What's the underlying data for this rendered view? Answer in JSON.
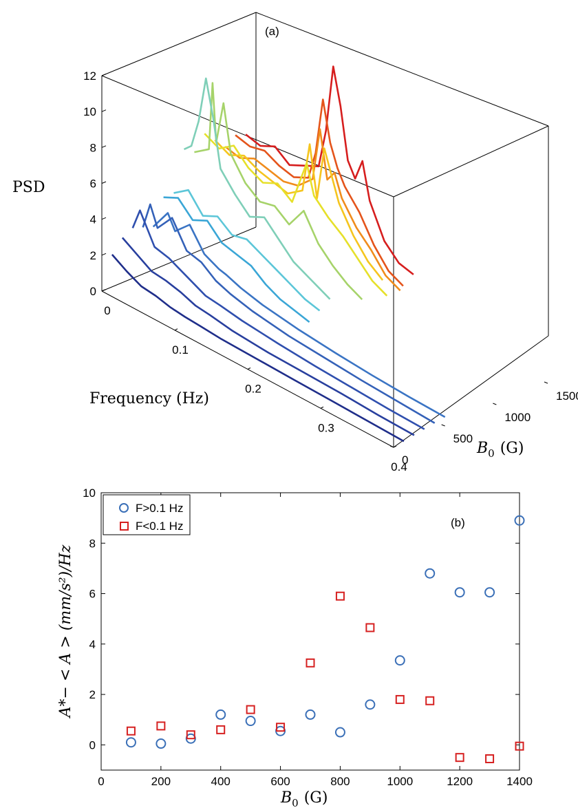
{
  "chart_data": [
    {
      "panel": "(a)",
      "type": "line",
      "projection": "3d-waterfall",
      "zlabel": "PSD",
      "xlabel": "Frequency (Hz)",
      "ylabel_sym": "B",
      "ylabel_sub": "0",
      "ylabel_unit": "(G)",
      "zlim": [
        0,
        12
      ],
      "xlim": [
        0,
        0.4
      ],
      "ylim": [
        0,
        1500
      ],
      "z_ticks": [
        0,
        2,
        4,
        6,
        8,
        10,
        12
      ],
      "x_ticks": [
        0,
        0.1,
        0.2,
        0.3,
        0.4
      ],
      "y_ticks": [
        0,
        500,
        1000,
        1500
      ],
      "colormap": "jet, blue (low B0) to red (high B0)",
      "series": [
        {
          "b0": 100,
          "color": "#1f2e8a",
          "points": [
            [
              0.0,
              1.8
            ],
            [
              0.02,
              1.3
            ],
            [
              0.04,
              0.9
            ],
            [
              0.06,
              0.8
            ],
            [
              0.08,
              0.6
            ],
            [
              0.1,
              0.5
            ],
            [
              0.12,
              0.45
            ],
            [
              0.15,
              0.35
            ],
            [
              0.2,
              0.3
            ],
            [
              0.25,
              0.25
            ],
            [
              0.3,
              0.2
            ],
            [
              0.35,
              0.15
            ],
            [
              0.4,
              0.1
            ]
          ]
        },
        {
          "b0": 200,
          "color": "#283f9e",
          "points": [
            [
              0.0,
              2.5
            ],
            [
              0.02,
              2.0
            ],
            [
              0.04,
              1.5
            ],
            [
              0.06,
              1.4
            ],
            [
              0.08,
              1.2
            ],
            [
              0.1,
              0.9
            ],
            [
              0.12,
              0.8
            ],
            [
              0.15,
              0.6
            ],
            [
              0.2,
              0.45
            ],
            [
              0.25,
              0.4
            ],
            [
              0.3,
              0.35
            ],
            [
              0.35,
              0.25
            ],
            [
              0.4,
              0.2
            ]
          ]
        },
        {
          "b0": 300,
          "color": "#2f4fae",
          "points": [
            [
              0.0,
              2.8
            ],
            [
              0.01,
              4.0
            ],
            [
              0.03,
              2.4
            ],
            [
              0.05,
              2.2
            ],
            [
              0.07,
              1.8
            ],
            [
              0.1,
              1.2
            ],
            [
              0.12,
              1.1
            ],
            [
              0.15,
              0.9
            ],
            [
              0.2,
              0.7
            ],
            [
              0.25,
              0.55
            ],
            [
              0.3,
              0.45
            ],
            [
              0.35,
              0.35
            ],
            [
              0.4,
              0.3
            ]
          ]
        },
        {
          "b0": 400,
          "color": "#3461b8",
          "points": [
            [
              0.0,
              2.6
            ],
            [
              0.01,
              4.1
            ],
            [
              0.02,
              3.0
            ],
            [
              0.04,
              4.0
            ],
            [
              0.06,
              2.6
            ],
            [
              0.08,
              2.4
            ],
            [
              0.1,
              1.8
            ],
            [
              0.12,
              1.5
            ],
            [
              0.15,
              1.2
            ],
            [
              0.2,
              0.9
            ],
            [
              0.25,
              0.75
            ],
            [
              0.3,
              0.6
            ],
            [
              0.35,
              0.5
            ],
            [
              0.4,
              0.4
            ]
          ]
        },
        {
          "b0": 500,
          "color": "#3a74c4",
          "points": [
            [
              0.0,
              2.4
            ],
            [
              0.02,
              3.6
            ],
            [
              0.03,
              2.8
            ],
            [
              0.05,
              3.6
            ],
            [
              0.07,
              2.4
            ],
            [
              0.09,
              2.0
            ],
            [
              0.1,
              1.9
            ],
            [
              0.12,
              1.6
            ],
            [
              0.15,
              1.3
            ],
            [
              0.2,
              1.0
            ],
            [
              0.25,
              0.8
            ],
            [
              0.3,
              0.65
            ],
            [
              0.35,
              0.55
            ],
            [
              0.4,
              0.5
            ]
          ]
        },
        {
          "b0": 600,
          "color": "#3aa6d6",
          "points": [
            [
              0.0,
              3.8
            ],
            [
              0.02,
              4.2
            ],
            [
              0.04,
              3.4
            ],
            [
              0.06,
              3.8
            ],
            [
              0.08,
              3.0
            ],
            [
              0.1,
              2.8
            ],
            [
              0.12,
              2.6
            ],
            [
              0.14,
              2.0
            ],
            [
              0.16,
              1.6
            ],
            [
              0.18,
              1.4
            ],
            [
              0.2,
              1.2
            ]
          ]
        },
        {
          "b0": 700,
          "color": "#5cc6d8",
          "points": [
            [
              0.0,
              3.8
            ],
            [
              0.02,
              4.4
            ],
            [
              0.04,
              3.4
            ],
            [
              0.06,
              3.8
            ],
            [
              0.08,
              3.2
            ],
            [
              0.1,
              3.4
            ],
            [
              0.12,
              3.0
            ],
            [
              0.14,
              2.6
            ],
            [
              0.16,
              2.2
            ],
            [
              0.18,
              1.8
            ],
            [
              0.2,
              1.6
            ]
          ]
        },
        {
          "b0": 800,
          "color": "#7fcfb8",
          "points": [
            [
              0.0,
              6.0
            ],
            [
              0.01,
              6.4
            ],
            [
              0.02,
              8.0
            ],
            [
              0.03,
              10.6
            ],
            [
              0.04,
              8.6
            ],
            [
              0.05,
              6.0
            ],
            [
              0.07,
              5.0
            ],
            [
              0.09,
              4.2
            ],
            [
              0.11,
              4.6
            ],
            [
              0.13,
              3.8
            ],
            [
              0.15,
              3.0
            ],
            [
              0.17,
              2.6
            ],
            [
              0.2,
              2.0
            ]
          ]
        },
        {
          "b0": 900,
          "color": "#a6d36a",
          "points": [
            [
              0.0,
              5.6
            ],
            [
              0.02,
              6.2
            ],
            [
              0.025,
              10.0
            ],
            [
              0.03,
              6.8
            ],
            [
              0.04,
              9.2
            ],
            [
              0.05,
              6.6
            ],
            [
              0.07,
              5.4
            ],
            [
              0.09,
              4.8
            ],
            [
              0.11,
              5.0
            ],
            [
              0.13,
              4.4
            ],
            [
              0.15,
              5.6
            ],
            [
              0.17,
              4.2
            ],
            [
              0.19,
              3.4
            ],
            [
              0.21,
              2.8
            ],
            [
              0.23,
              2.4
            ]
          ]
        },
        {
          "b0": 1000,
          "color": "#e6e02a",
          "points": [
            [
              0.0,
              6.4
            ],
            [
              0.02,
              6.0
            ],
            [
              0.04,
              6.6
            ],
            [
              0.06,
              5.8
            ],
            [
              0.08,
              5.4
            ],
            [
              0.1,
              5.8
            ],
            [
              0.12,
              5.2
            ],
            [
              0.14,
              7.8
            ],
            [
              0.15,
              6.2
            ],
            [
              0.17,
              5.4
            ],
            [
              0.19,
              4.8
            ],
            [
              0.21,
              4.0
            ],
            [
              0.23,
              3.2
            ],
            [
              0.25,
              2.8
            ]
          ]
        },
        {
          "b0": 1100,
          "color": "#f5c51e",
          "points": [
            [
              0.0,
              5.8
            ],
            [
              0.02,
              5.4
            ],
            [
              0.04,
              5.8
            ],
            [
              0.06,
              5.4
            ],
            [
              0.08,
              5.2
            ],
            [
              0.1,
              5.0
            ],
            [
              0.12,
              5.6
            ],
            [
              0.13,
              8.4
            ],
            [
              0.14,
              5.6
            ],
            [
              0.15,
              8.6
            ],
            [
              0.17,
              6.0
            ],
            [
              0.19,
              4.6
            ],
            [
              0.21,
              3.6
            ],
            [
              0.23,
              3.0
            ]
          ]
        },
        {
          "b0": 1200,
          "color": "#f08c1c",
          "points": [
            [
              0.0,
              5.2
            ],
            [
              0.02,
              5.0
            ],
            [
              0.04,
              5.4
            ],
            [
              0.06,
              5.2
            ],
            [
              0.08,
              5.0
            ],
            [
              0.1,
              5.2
            ],
            [
              0.12,
              6.0
            ],
            [
              0.13,
              9.0
            ],
            [
              0.14,
              6.4
            ],
            [
              0.15,
              7.0
            ],
            [
              0.16,
              5.8
            ],
            [
              0.18,
              4.6
            ],
            [
              0.2,
              3.8
            ],
            [
              0.22,
              2.8
            ],
            [
              0.24,
              2.4
            ]
          ]
        },
        {
          "b0": 1300,
          "color": "#e4541b",
          "points": [
            [
              0.0,
              5.6
            ],
            [
              0.02,
              5.4
            ],
            [
              0.04,
              5.6
            ],
            [
              0.06,
              5.2
            ],
            [
              0.08,
              5.0
            ],
            [
              0.1,
              5.4
            ],
            [
              0.11,
              7.0
            ],
            [
              0.12,
              10.2
            ],
            [
              0.13,
              8.0
            ],
            [
              0.14,
              6.8
            ],
            [
              0.15,
              6.0
            ],
            [
              0.17,
              5.0
            ],
            [
              0.19,
              3.6
            ],
            [
              0.21,
              2.6
            ],
            [
              0.23,
              2.2
            ]
          ]
        },
        {
          "b0": 1400,
          "color": "#d61e1e",
          "points": [
            [
              0.0,
              5.4
            ],
            [
              0.02,
              5.2
            ],
            [
              0.04,
              5.6
            ],
            [
              0.06,
              5.0
            ],
            [
              0.08,
              5.4
            ],
            [
              0.1,
              5.8
            ],
            [
              0.11,
              8.0
            ],
            [
              0.12,
              11.8
            ],
            [
              0.13,
              9.8
            ],
            [
              0.14,
              7.0
            ],
            [
              0.15,
              6.2
            ],
            [
              0.16,
              7.4
            ],
            [
              0.17,
              5.4
            ],
            [
              0.19,
              3.6
            ],
            [
              0.21,
              2.8
            ],
            [
              0.23,
              2.6
            ]
          ]
        }
      ]
    },
    {
      "panel": "(b)",
      "type": "scatter",
      "xlabel_sym": "B",
      "xlabel_sub": "0",
      "xlabel_unit": "(G)",
      "ylabel": "A*− < A > (mm/s²)/Hz",
      "xlim": [
        0,
        1400
      ],
      "ylim": [
        -1,
        10
      ],
      "x_ticks": [
        0,
        200,
        400,
        600,
        800,
        1000,
        1200,
        1400
      ],
      "y_ticks": [
        0,
        2,
        4,
        6,
        8,
        10
      ],
      "grid": false,
      "legend_position": "top-left",
      "series": [
        {
          "name": "F>0.1 Hz",
          "marker": "circle",
          "color": "#3a6fb7",
          "x": [
            100,
            200,
            300,
            400,
            500,
            600,
            700,
            800,
            900,
            1000,
            1100,
            1200,
            1300,
            1400
          ],
          "y": [
            0.1,
            0.05,
            0.25,
            1.2,
            0.95,
            0.55,
            1.2,
            0.5,
            1.6,
            3.35,
            6.8,
            6.05,
            6.05,
            8.9
          ]
        },
        {
          "name": "F<0.1 Hz",
          "marker": "square",
          "color": "#d62020",
          "x": [
            100,
            200,
            300,
            400,
            500,
            600,
            700,
            800,
            900,
            1000,
            1100,
            1200,
            1300,
            1400
          ],
          "y": [
            0.55,
            0.75,
            0.4,
            0.6,
            1.4,
            0.7,
            3.25,
            5.9,
            4.65,
            1.8,
            1.75,
            -0.5,
            -0.55,
            -0.05
          ]
        }
      ]
    }
  ]
}
